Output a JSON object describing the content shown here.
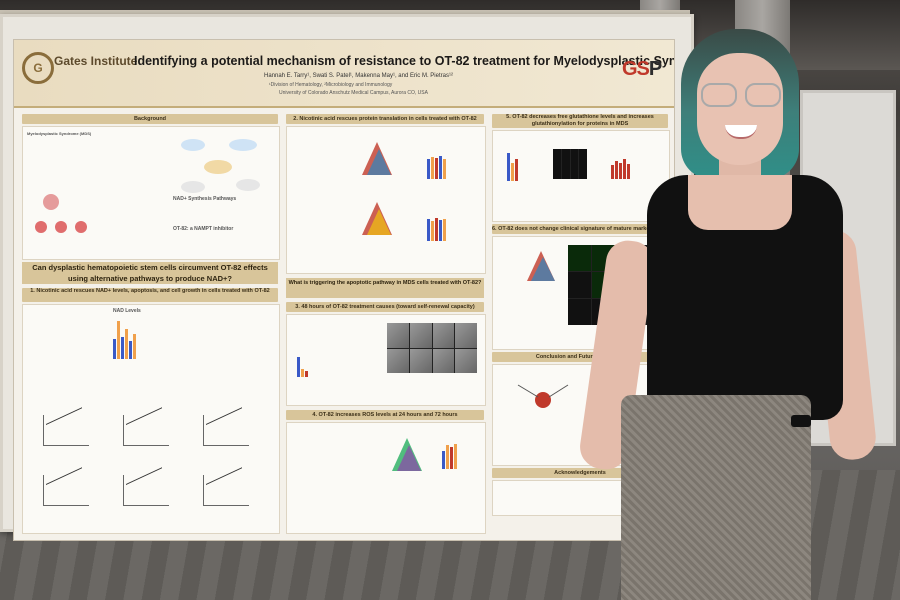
{
  "poster": {
    "institute": "Gates Institute",
    "title": "Identifying a potential mechanism of resistance to OT-82 treatment for Myelodysplastic Syndrome",
    "authors": "Hannah E. Tarry¹, Swati S. Patel¹, Makenna May¹, and Eric M. Pietras¹²",
    "affiliation_1": "¹Division of Hematology, ²Microbiology and Immunology",
    "affiliation_2": "University of Colorado Anschutz Medical Campus, Aurora CO, USA",
    "logo_right_a": "GS",
    "logo_right_b": "P",
    "sections": {
      "background": "Background",
      "background_sub1": "Myelodysplastic Syndrome (MDS)",
      "nad_pathways": "NAD+ Synthesis Pathways",
      "ot82": "OT-82: a NAMPT inhibitor",
      "question": "Can dysplastic hematopoietic stem cells circumvent OT-82 effects using alternative pathways to produce NAD+?",
      "s1": "1. Nicotinic acid rescues NAD+ levels, apoptosis, and cell growth in cells treated with OT-82",
      "nad_levels": "NAD Levels",
      "s2": "2. Nicotinic acid rescues protein translation in cells treated with OT-82",
      "q2": "What is triggering the apoptotic pathway in MDS cells treated with OT-82?",
      "s3": "3. 48 hours of OT-82 treatment causes (toward self-renewal capacity)",
      "s4": "4. OT-82 increases ROS levels at 24 hours and 72 hours",
      "s5": "5. OT-82 decreases free glutathione levels and increases glutathionylation for proteins in MDS",
      "s6": "6. OT-82 does not change clinical signature of mature marker RSA 2",
      "conclusions": "Conclusion and Future Directions",
      "ack": "Acknowledgements"
    }
  }
}
